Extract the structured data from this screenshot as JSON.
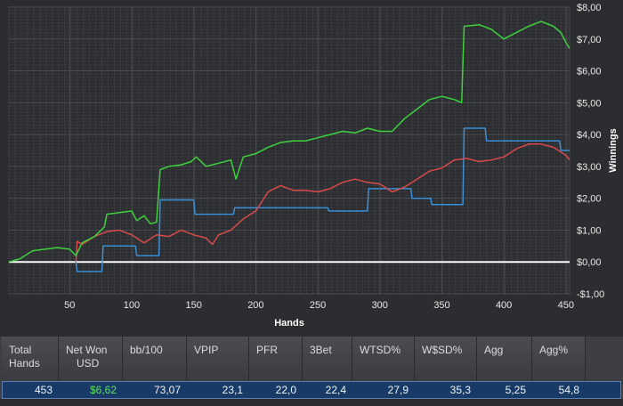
{
  "chart_data": {
    "type": "line",
    "xlabel": "Hands",
    "ylabel": "Winnings",
    "xlim": [
      1,
      453
    ],
    "ylim": [
      -1.0,
      8.0
    ],
    "x_ticks": [
      50,
      100,
      150,
      200,
      250,
      300,
      350,
      400,
      450
    ],
    "y_ticks": [
      -1,
      0,
      1,
      2,
      3,
      4,
      5,
      6,
      7,
      8
    ],
    "x_tick_labels": [
      "50",
      "100",
      "150",
      "200",
      "250",
      "300",
      "350",
      "400",
      "450"
    ],
    "y_tick_labels": [
      "-$1,00",
      "$0,00",
      "$1,00",
      "$2,00",
      "$3,00",
      "$4,00",
      "$5,00",
      "$6,00",
      "$7,00",
      "$8,00"
    ],
    "grid": true,
    "zero_line": true,
    "series": [
      {
        "color": "#3ed13e",
        "points": [
          [
            1,
            0.0
          ],
          [
            10,
            0.1
          ],
          [
            20,
            0.35
          ],
          [
            30,
            0.4
          ],
          [
            40,
            0.45
          ],
          [
            50,
            0.4
          ],
          [
            55,
            0.2
          ],
          [
            60,
            0.6
          ],
          [
            70,
            0.8
          ],
          [
            78,
            1.1
          ],
          [
            80,
            1.5
          ],
          [
            90,
            1.55
          ],
          [
            100,
            1.6
          ],
          [
            104,
            1.3
          ],
          [
            110,
            1.45
          ],
          [
            115,
            1.2
          ],
          [
            120,
            1.25
          ],
          [
            123,
            2.9
          ],
          [
            130,
            3.0
          ],
          [
            140,
            3.05
          ],
          [
            148,
            3.15
          ],
          [
            152,
            3.3
          ],
          [
            160,
            3.0
          ],
          [
            170,
            3.1
          ],
          [
            180,
            3.2
          ],
          [
            184,
            2.6
          ],
          [
            190,
            3.3
          ],
          [
            200,
            3.4
          ],
          [
            210,
            3.6
          ],
          [
            220,
            3.75
          ],
          [
            230,
            3.8
          ],
          [
            240,
            3.8
          ],
          [
            250,
            3.9
          ],
          [
            260,
            4.0
          ],
          [
            270,
            4.1
          ],
          [
            280,
            4.05
          ],
          [
            290,
            4.2
          ],
          [
            300,
            4.1
          ],
          [
            310,
            4.1
          ],
          [
            320,
            4.5
          ],
          [
            330,
            4.8
          ],
          [
            340,
            5.1
          ],
          [
            350,
            5.2
          ],
          [
            360,
            5.1
          ],
          [
            366,
            5.0
          ],
          [
            368,
            7.4
          ],
          [
            380,
            7.45
          ],
          [
            390,
            7.3
          ],
          [
            400,
            7.0
          ],
          [
            410,
            7.2
          ],
          [
            420,
            7.4
          ],
          [
            430,
            7.55
          ],
          [
            440,
            7.4
          ],
          [
            446,
            7.2
          ],
          [
            450,
            6.9
          ],
          [
            453,
            6.7
          ]
        ]
      },
      {
        "color": "#3a8fd6",
        "points": [
          [
            55,
            0.0
          ],
          [
            56,
            -0.3
          ],
          [
            76,
            -0.3
          ],
          [
            77,
            0.5
          ],
          [
            103,
            0.5
          ],
          [
            104,
            0.2
          ],
          [
            122,
            0.2
          ],
          [
            123,
            1.95
          ],
          [
            150,
            1.95
          ],
          [
            151,
            1.5
          ],
          [
            182,
            1.5
          ],
          [
            183,
            1.7
          ],
          [
            258,
            1.7
          ],
          [
            259,
            1.6
          ],
          [
            290,
            1.6
          ],
          [
            291,
            2.3
          ],
          [
            325,
            2.3
          ],
          [
            326,
            2.0
          ],
          [
            341,
            2.0
          ],
          [
            342,
            1.8
          ],
          [
            367,
            1.8
          ],
          [
            368,
            4.2
          ],
          [
            385,
            4.2
          ],
          [
            386,
            3.8
          ],
          [
            445,
            3.8
          ],
          [
            446,
            3.5
          ],
          [
            453,
            3.5
          ]
        ]
      },
      {
        "color": "#d94a4a",
        "points": [
          [
            55,
            0.0
          ],
          [
            56,
            0.65
          ],
          [
            60,
            0.55
          ],
          [
            70,
            0.8
          ],
          [
            80,
            0.95
          ],
          [
            90,
            1.0
          ],
          [
            100,
            0.85
          ],
          [
            110,
            0.6
          ],
          [
            120,
            0.85
          ],
          [
            130,
            0.8
          ],
          [
            140,
            1.0
          ],
          [
            150,
            0.85
          ],
          [
            160,
            0.75
          ],
          [
            165,
            0.55
          ],
          [
            170,
            0.85
          ],
          [
            180,
            1.0
          ],
          [
            190,
            1.35
          ],
          [
            200,
            1.6
          ],
          [
            210,
            2.2
          ],
          [
            220,
            2.4
          ],
          [
            230,
            2.25
          ],
          [
            240,
            2.25
          ],
          [
            250,
            2.2
          ],
          [
            260,
            2.3
          ],
          [
            270,
            2.5
          ],
          [
            280,
            2.6
          ],
          [
            290,
            2.5
          ],
          [
            300,
            2.45
          ],
          [
            310,
            2.2
          ],
          [
            320,
            2.35
          ],
          [
            330,
            2.6
          ],
          [
            340,
            2.85
          ],
          [
            350,
            2.95
          ],
          [
            360,
            3.2
          ],
          [
            370,
            3.25
          ],
          [
            380,
            3.15
          ],
          [
            390,
            3.2
          ],
          [
            400,
            3.3
          ],
          [
            410,
            3.55
          ],
          [
            420,
            3.7
          ],
          [
            430,
            3.7
          ],
          [
            440,
            3.6
          ],
          [
            450,
            3.35
          ],
          [
            453,
            3.2
          ]
        ]
      }
    ]
  },
  "stats": {
    "headers": [
      {
        "line1": "Total",
        "line2": "Hands"
      },
      {
        "line1": "Net Won",
        "line2": "USD"
      },
      {
        "line1": "bb/100",
        "line2": ""
      },
      {
        "line1": "VPIP",
        "line2": ""
      },
      {
        "line1": "PFR",
        "line2": ""
      },
      {
        "line1": "3Bet",
        "line2": ""
      },
      {
        "line1": "WTSD%",
        "line2": ""
      },
      {
        "line1": "W$SD%",
        "line2": ""
      },
      {
        "line1": "Agg",
        "line2": ""
      },
      {
        "line1": "Agg%",
        "line2": ""
      }
    ],
    "values": [
      "453",
      "$6,62",
      "73,07",
      "23,1",
      "22,0",
      "22,4",
      "27,9",
      "35,3",
      "5,25",
      "54,8"
    ],
    "positive_color": "#5fe05f"
  }
}
